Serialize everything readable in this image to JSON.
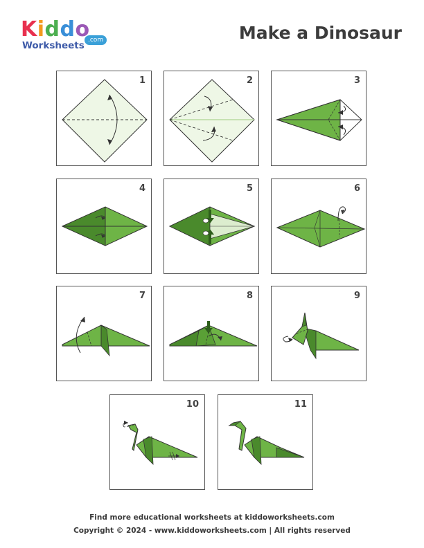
{
  "brand": {
    "letters": [
      "K",
      "i",
      "d",
      "d",
      "o"
    ],
    "letter_colors": [
      "#e8314f",
      "#f39a1e",
      "#4caf50",
      "#3a8fd8",
      "#9b59b6"
    ],
    "sub": "Worksheets",
    "dotcom": ".com"
  },
  "title": "Make a Dinosaur",
  "steps": [
    "1",
    "2",
    "3",
    "4",
    "5",
    "6",
    "7",
    "8",
    "9",
    "10",
    "11"
  ],
  "colors": {
    "paper_light": "#eef7e6",
    "paper_green": "#6eb446",
    "paper_dark": "#4a8a2c",
    "paper_inner": "#dcedce",
    "outline": "#333333"
  },
  "footer": {
    "line1": "Find more educational worksheets at kiddoworksheets.com",
    "line2": "Copyright © 2024 - www.kiddoworksheets.com  |  All rights reserved"
  }
}
